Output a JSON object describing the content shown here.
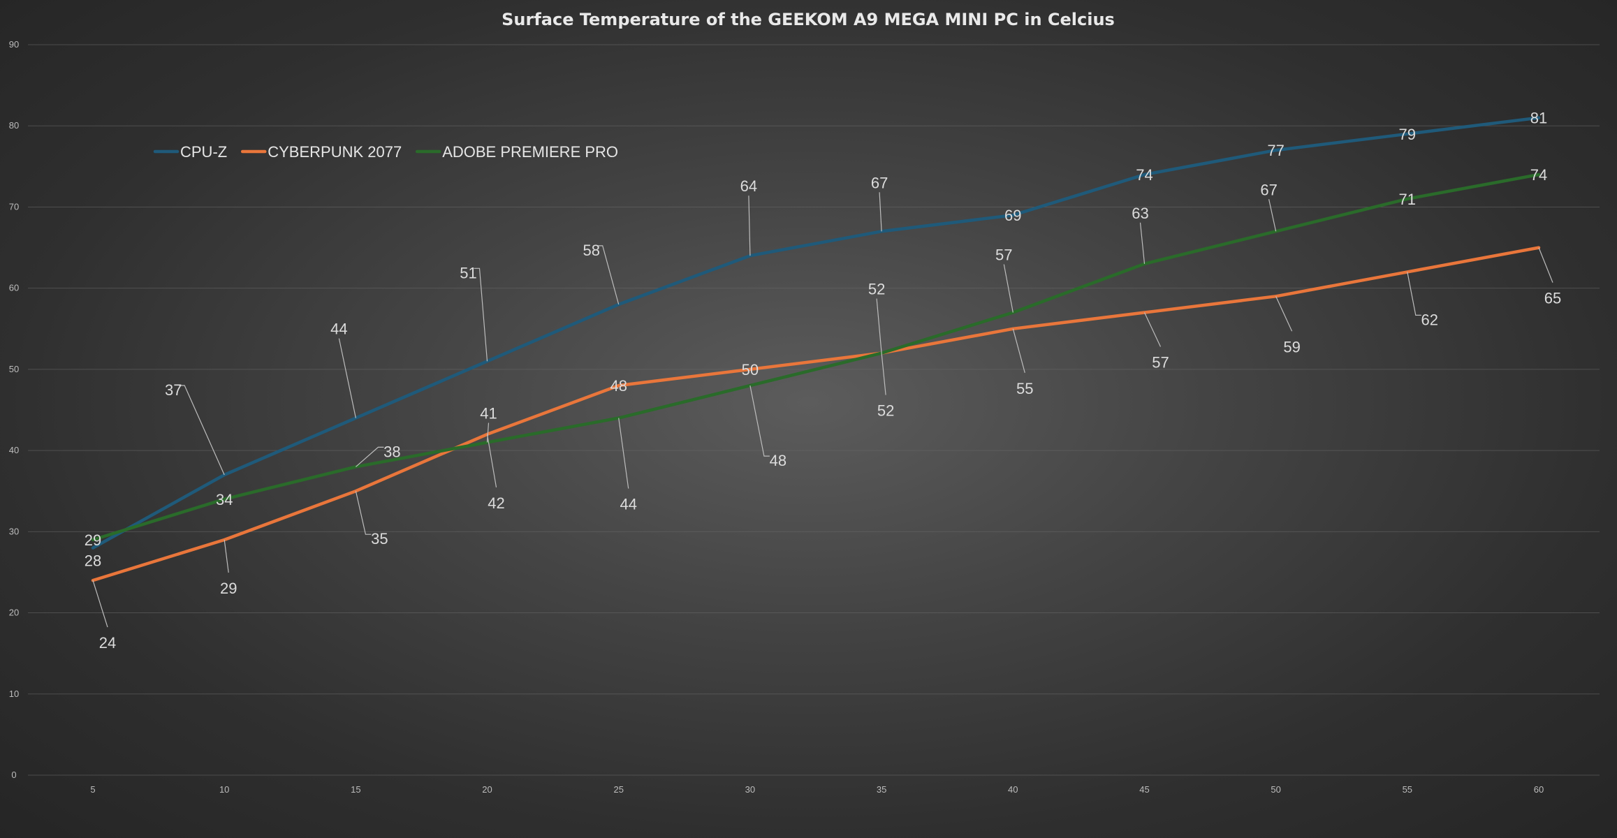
{
  "chart_data": {
    "type": "line",
    "title": "Surface Temperature of the GEEKOM A9 MEGA MINI PC in Celcius",
    "xlabel": "",
    "ylabel": "",
    "x": [
      5,
      10,
      15,
      20,
      25,
      30,
      35,
      40,
      45,
      50,
      55,
      60
    ],
    "xlim": [
      5,
      60
    ],
    "ylim": [
      0,
      90
    ],
    "y_ticks": [
      0,
      10,
      20,
      30,
      40,
      50,
      60,
      70,
      80,
      90
    ],
    "grid": true,
    "legend_position": "top-left",
    "series": [
      {
        "name": "CPU-Z",
        "color": "#1f5a7a",
        "values": [
          28,
          37,
          44,
          51,
          58,
          64,
          67,
          69,
          74,
          77,
          79,
          81
        ]
      },
      {
        "name": "CYBERPUNK 2077",
        "color": "#e9763b",
        "values": [
          24,
          29,
          35,
          42,
          48,
          50,
          52,
          55,
          57,
          59,
          62,
          65
        ]
      },
      {
        "name": "ADOBE PREMIERE PRO",
        "color": "#2a6b2a",
        "values": [
          29,
          34,
          38,
          41,
          44,
          48,
          52,
          57,
          63,
          67,
          71,
          74
        ]
      }
    ]
  }
}
